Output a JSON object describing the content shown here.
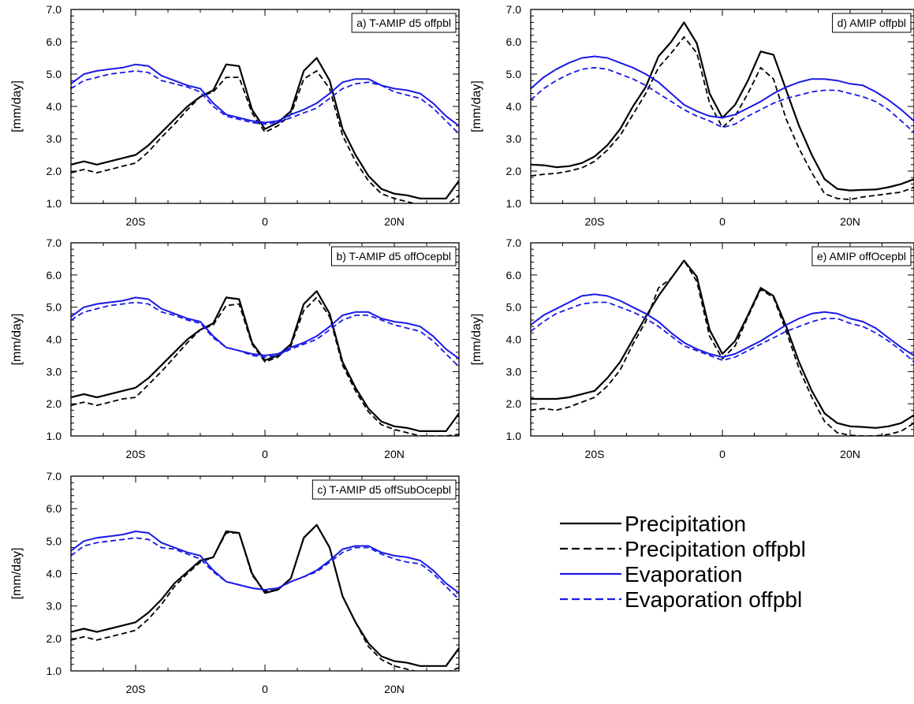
{
  "legend": {
    "items": [
      {
        "label": "Precipitation",
        "color": "#000000",
        "dash": false
      },
      {
        "label": "Precipitation offpbl",
        "color": "#000000",
        "dash": true
      },
      {
        "label": "Evaporation",
        "color": "#1a1ae6",
        "dash": false
      },
      {
        "label": "Evaporation offpbl",
        "color": "#1a1ae6",
        "dash": true
      }
    ]
  },
  "chart_data": [
    {
      "type": "line",
      "title": "a) T-AMIP d5 offpbl",
      "ylabel": "[mm/day]",
      "xlim": [
        -30,
        30
      ],
      "ylim": [
        1.0,
        7.0
      ],
      "xticks": [
        -20,
        0,
        20
      ],
      "xticklabels": [
        "20S",
        "0",
        "20N"
      ],
      "yticks": [
        1.0,
        2.0,
        3.0,
        4.0,
        5.0,
        6.0,
        7.0
      ],
      "yticklabels": [
        "1.0",
        "2.0",
        "3.0",
        "4.0",
        "5.0",
        "6.0",
        "7.0"
      ],
      "x": [
        -30,
        -28,
        -26,
        -24,
        -22,
        -20,
        -18,
        -16,
        -14,
        -12,
        -10,
        -8,
        -6,
        -4,
        -2,
        0,
        2,
        4,
        6,
        8,
        10,
        12,
        14,
        16,
        18,
        20,
        22,
        24,
        26,
        28,
        30
      ],
      "series": [
        {
          "name": "Precipitation",
          "values": [
            2.2,
            2.3,
            2.2,
            2.3,
            2.4,
            2.5,
            2.8,
            3.2,
            3.6,
            4.0,
            4.3,
            4.5,
            5.3,
            5.25,
            3.9,
            3.3,
            3.5,
            3.85,
            5.1,
            5.5,
            4.8,
            3.3,
            2.5,
            1.85,
            1.45,
            1.3,
            1.25,
            1.15,
            1.15,
            1.15,
            1.7
          ]
        },
        {
          "name": "Precipitation offpbl",
          "values": [
            1.95,
            2.05,
            1.95,
            2.05,
            2.15,
            2.25,
            2.6,
            3.05,
            3.45,
            3.9,
            4.3,
            4.45,
            4.9,
            4.9,
            3.8,
            3.2,
            3.4,
            3.75,
            4.85,
            5.1,
            4.55,
            3.1,
            2.3,
            1.7,
            1.3,
            1.15,
            1.05,
            0.95,
            0.95,
            0.95,
            1.25
          ]
        },
        {
          "name": "Evaporation",
          "values": [
            4.7,
            5.0,
            5.1,
            5.15,
            5.2,
            5.3,
            5.25,
            4.95,
            4.8,
            4.65,
            4.55,
            4.1,
            3.75,
            3.65,
            3.55,
            3.5,
            3.55,
            3.75,
            3.9,
            4.1,
            4.4,
            4.75,
            4.85,
            4.85,
            4.65,
            4.55,
            4.5,
            4.4,
            4.1,
            3.7,
            3.4
          ]
        },
        {
          "name": "Evaporation offpbl",
          "values": [
            4.55,
            4.8,
            4.9,
            5.0,
            5.05,
            5.1,
            5.05,
            4.8,
            4.7,
            4.6,
            4.45,
            4.0,
            3.7,
            3.6,
            3.5,
            3.45,
            3.5,
            3.65,
            3.8,
            3.95,
            4.25,
            4.55,
            4.7,
            4.75,
            4.65,
            4.45,
            4.35,
            4.25,
            3.95,
            3.55,
            3.15
          ]
        }
      ]
    },
    {
      "type": "line",
      "title": "b) T-AMIP d5 offOcepbl",
      "ylabel": "[mm/day]",
      "xlim": [
        -30,
        30
      ],
      "ylim": [
        1.0,
        7.0
      ],
      "xticks": [
        -20,
        0,
        20
      ],
      "xticklabels": [
        "20S",
        "0",
        "20N"
      ],
      "yticks": [
        1.0,
        2.0,
        3.0,
        4.0,
        5.0,
        6.0,
        7.0
      ],
      "yticklabels": [
        "1.0",
        "2.0",
        "3.0",
        "4.0",
        "5.0",
        "6.0",
        "7.0"
      ],
      "x": [
        -30,
        -28,
        -26,
        -24,
        -22,
        -20,
        -18,
        -16,
        -14,
        -12,
        -10,
        -8,
        -6,
        -4,
        -2,
        0,
        2,
        4,
        6,
        8,
        10,
        12,
        14,
        16,
        18,
        20,
        22,
        24,
        26,
        28,
        30
      ],
      "series": [
        {
          "name": "Precipitation",
          "values": [
            2.2,
            2.3,
            2.2,
            2.3,
            2.4,
            2.5,
            2.8,
            3.2,
            3.6,
            4.0,
            4.3,
            4.5,
            5.3,
            5.25,
            3.9,
            3.35,
            3.5,
            3.85,
            5.1,
            5.5,
            4.8,
            3.3,
            2.5,
            1.85,
            1.45,
            1.3,
            1.25,
            1.15,
            1.15,
            1.15,
            1.7
          ]
        },
        {
          "name": "Precipitation offpbl",
          "values": [
            1.95,
            2.05,
            1.95,
            2.05,
            2.15,
            2.2,
            2.6,
            3.0,
            3.45,
            3.9,
            4.3,
            4.45,
            5.05,
            5.1,
            3.85,
            3.3,
            3.45,
            3.8,
            4.9,
            5.3,
            4.7,
            3.2,
            2.4,
            1.75,
            1.35,
            1.2,
            1.1,
            1.0,
            1.0,
            1.0,
            1.05
          ]
        },
        {
          "name": "Evaporation",
          "values": [
            4.7,
            5.0,
            5.1,
            5.15,
            5.2,
            5.3,
            5.25,
            4.95,
            4.8,
            4.65,
            4.55,
            4.1,
            3.75,
            3.65,
            3.55,
            3.5,
            3.55,
            3.75,
            3.9,
            4.1,
            4.4,
            4.75,
            4.85,
            4.85,
            4.65,
            4.55,
            4.5,
            4.4,
            4.1,
            3.7,
            3.4
          ]
        },
        {
          "name": "Evaporation offpbl",
          "values": [
            4.6,
            4.85,
            4.95,
            5.05,
            5.1,
            5.15,
            5.1,
            4.85,
            4.75,
            4.6,
            4.5,
            4.05,
            3.75,
            3.65,
            3.5,
            3.45,
            3.5,
            3.7,
            3.85,
            4.0,
            4.3,
            4.6,
            4.75,
            4.75,
            4.6,
            4.45,
            4.35,
            4.25,
            3.95,
            3.55,
            3.15
          ]
        }
      ]
    },
    {
      "type": "line",
      "title": "c) T-AMIP d5 offSubOcepbl",
      "ylabel": "[mm/day]",
      "xlim": [
        -30,
        30
      ],
      "ylim": [
        1.0,
        7.0
      ],
      "xticks": [
        -20,
        0,
        20
      ],
      "xticklabels": [
        "20S",
        "0",
        "20N"
      ],
      "yticks": [
        1.0,
        2.0,
        3.0,
        4.0,
        5.0,
        6.0,
        7.0
      ],
      "yticklabels": [
        "1.0",
        "2.0",
        "3.0",
        "4.0",
        "5.0",
        "6.0",
        "7.0"
      ],
      "x": [
        -30,
        -28,
        -26,
        -24,
        -22,
        -20,
        -18,
        -16,
        -14,
        -12,
        -10,
        -8,
        -6,
        -4,
        -2,
        0,
        2,
        4,
        6,
        8,
        10,
        12,
        14,
        16,
        18,
        20,
        22,
        24,
        26,
        28,
        30
      ],
      "series": [
        {
          "name": "Precipitation",
          "values": [
            2.2,
            2.3,
            2.2,
            2.3,
            2.4,
            2.5,
            2.8,
            3.2,
            3.7,
            4.05,
            4.4,
            4.5,
            5.3,
            5.25,
            4.0,
            3.4,
            3.5,
            3.85,
            5.1,
            5.5,
            4.8,
            3.3,
            2.5,
            1.85,
            1.45,
            1.3,
            1.25,
            1.15,
            1.15,
            1.15,
            1.7
          ]
        },
        {
          "name": "Precipitation offpbl",
          "values": [
            1.95,
            2.05,
            1.95,
            2.05,
            2.15,
            2.25,
            2.6,
            3.05,
            3.6,
            4.0,
            4.35,
            4.5,
            5.25,
            5.25,
            3.95,
            3.45,
            3.5,
            3.85,
            5.1,
            5.5,
            4.8,
            3.3,
            2.5,
            1.75,
            1.35,
            1.15,
            1.05,
            0.95,
            0.95,
            0.95,
            1.1
          ]
        },
        {
          "name": "Evaporation",
          "values": [
            4.7,
            5.0,
            5.1,
            5.15,
            5.2,
            5.3,
            5.25,
            4.95,
            4.8,
            4.65,
            4.55,
            4.1,
            3.75,
            3.65,
            3.55,
            3.5,
            3.55,
            3.75,
            3.9,
            4.1,
            4.4,
            4.75,
            4.85,
            4.85,
            4.65,
            4.55,
            4.5,
            4.4,
            4.1,
            3.7,
            3.4
          ]
        },
        {
          "name": "Evaporation offpbl",
          "values": [
            4.55,
            4.85,
            4.95,
            5.0,
            5.05,
            5.1,
            5.05,
            4.8,
            4.75,
            4.6,
            4.45,
            4.05,
            3.75,
            3.65,
            3.55,
            3.5,
            3.55,
            3.75,
            3.9,
            4.05,
            4.35,
            4.65,
            4.8,
            4.8,
            4.6,
            4.45,
            4.35,
            4.3,
            4.0,
            3.6,
            3.2
          ]
        }
      ]
    },
    {
      "type": "line",
      "title": "d) AMIP offpbl",
      "ylabel": "[mm/day]",
      "xlim": [
        -30,
        30
      ],
      "ylim": [
        1.0,
        7.0
      ],
      "xticks": [
        -20,
        0,
        20
      ],
      "xticklabels": [
        "20S",
        "0",
        "20N"
      ],
      "yticks": [
        1.0,
        2.0,
        3.0,
        4.0,
        5.0,
        6.0,
        7.0
      ],
      "yticklabels": [
        "1.0",
        "2.0",
        "3.0",
        "4.0",
        "5.0",
        "6.0",
        "7.0"
      ],
      "x": [
        -30,
        -28,
        -26,
        -24,
        -22,
        -20,
        -18,
        -16,
        -14,
        -12,
        -10,
        -8,
        -6,
        -4,
        -2,
        0,
        2,
        4,
        6,
        8,
        10,
        12,
        14,
        16,
        18,
        20,
        22,
        24,
        26,
        28,
        30
      ],
      "series": [
        {
          "name": "Precipitation",
          "values": [
            2.2,
            2.18,
            2.12,
            2.15,
            2.25,
            2.45,
            2.8,
            3.3,
            4.0,
            4.6,
            5.55,
            6.0,
            6.6,
            5.95,
            4.4,
            3.65,
            4.05,
            4.8,
            5.7,
            5.6,
            4.5,
            3.4,
            2.5,
            1.75,
            1.45,
            1.4,
            1.42,
            1.43,
            1.5,
            1.6,
            1.75
          ]
        },
        {
          "name": "Precipitation offpbl",
          "values": [
            1.85,
            1.9,
            1.93,
            2.0,
            2.1,
            2.3,
            2.65,
            3.1,
            3.75,
            4.4,
            5.2,
            5.65,
            6.15,
            5.65,
            4.1,
            3.35,
            3.7,
            4.4,
            5.2,
            4.85,
            3.6,
            2.7,
            1.95,
            1.3,
            1.15,
            1.12,
            1.2,
            1.25,
            1.3,
            1.35,
            1.5
          ]
        },
        {
          "name": "Evaporation",
          "values": [
            4.55,
            4.9,
            5.15,
            5.35,
            5.5,
            5.55,
            5.5,
            5.35,
            5.2,
            5.0,
            4.75,
            4.4,
            4.05,
            3.85,
            3.7,
            3.65,
            3.75,
            3.95,
            4.15,
            4.4,
            4.6,
            4.75,
            4.85,
            4.85,
            4.8,
            4.7,
            4.65,
            4.45,
            4.2,
            3.9,
            3.55
          ]
        },
        {
          "name": "Evaporation offpbl",
          "values": [
            4.2,
            4.55,
            4.8,
            5.0,
            5.15,
            5.2,
            5.15,
            5.0,
            4.85,
            4.65,
            4.4,
            4.15,
            3.9,
            3.7,
            3.55,
            3.35,
            3.45,
            3.7,
            3.9,
            4.1,
            4.25,
            4.35,
            4.45,
            4.5,
            4.5,
            4.4,
            4.3,
            4.15,
            3.9,
            3.55,
            3.2
          ]
        }
      ]
    },
    {
      "type": "line",
      "title": "e) AMIP offOcepbl",
      "ylabel": "[mm/day]",
      "xlim": [
        -30,
        30
      ],
      "ylim": [
        1.0,
        7.0
      ],
      "xticks": [
        -20,
        0,
        20
      ],
      "xticklabels": [
        "20S",
        "0",
        "20N"
      ],
      "yticks": [
        1.0,
        2.0,
        3.0,
        4.0,
        5.0,
        6.0,
        7.0
      ],
      "yticklabels": [
        "1.0",
        "2.0",
        "3.0",
        "4.0",
        "5.0",
        "6.0",
        "7.0"
      ],
      "x": [
        -30,
        -28,
        -26,
        -24,
        -22,
        -20,
        -18,
        -16,
        -14,
        -12,
        -10,
        -8,
        -6,
        -4,
        -2,
        0,
        2,
        4,
        6,
        8,
        10,
        12,
        14,
        16,
        18,
        20,
        22,
        24,
        26,
        28,
        30
      ],
      "series": [
        {
          "name": "Precipitation",
          "values": [
            2.15,
            2.15,
            2.15,
            2.2,
            2.3,
            2.4,
            2.8,
            3.3,
            4.0,
            4.7,
            5.35,
            5.9,
            6.45,
            5.95,
            4.3,
            3.55,
            3.95,
            4.75,
            5.6,
            5.35,
            4.4,
            3.3,
            2.4,
            1.7,
            1.4,
            1.3,
            1.28,
            1.25,
            1.3,
            1.4,
            1.65
          ]
        },
        {
          "name": "Precipitation offpbl",
          "values": [
            1.8,
            1.85,
            1.8,
            1.9,
            2.05,
            2.2,
            2.55,
            3.05,
            3.85,
            4.55,
            5.6,
            5.9,
            6.45,
            5.8,
            4.1,
            3.4,
            3.8,
            4.7,
            5.55,
            5.3,
            4.25,
            3.1,
            2.2,
            1.45,
            1.1,
            1.02,
            1.0,
            1.0,
            1.05,
            1.15,
            1.4
          ]
        },
        {
          "name": "Evaporation",
          "values": [
            4.45,
            4.75,
            4.95,
            5.15,
            5.35,
            5.4,
            5.35,
            5.2,
            5.0,
            4.8,
            4.55,
            4.2,
            3.9,
            3.7,
            3.55,
            3.45,
            3.55,
            3.75,
            3.95,
            4.2,
            4.45,
            4.65,
            4.8,
            4.85,
            4.8,
            4.65,
            4.55,
            4.35,
            4.05,
            3.75,
            3.5
          ]
        },
        {
          "name": "Evaporation offpbl",
          "values": [
            4.25,
            4.55,
            4.8,
            4.95,
            5.1,
            5.15,
            5.15,
            5.0,
            4.85,
            4.65,
            4.4,
            4.1,
            3.8,
            3.65,
            3.5,
            3.35,
            3.45,
            3.65,
            3.85,
            4.05,
            4.25,
            4.4,
            4.55,
            4.65,
            4.65,
            4.5,
            4.4,
            4.2,
            3.95,
            3.65,
            3.3
          ]
        }
      ]
    }
  ]
}
